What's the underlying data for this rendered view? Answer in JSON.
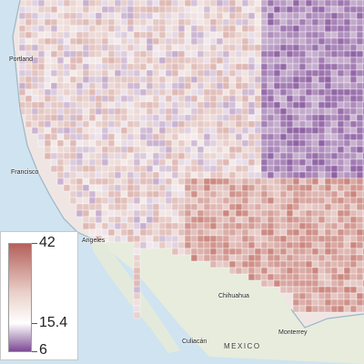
{
  "legend": {
    "max_label": "42",
    "mid_label": "15.4",
    "min_label": "6",
    "color_max": "#b5605a",
    "color_mid": "#ffffff",
    "color_min": "#7c4a93"
  },
  "labels": {
    "country": "MEXICO",
    "cities": [
      "Portland",
      "Francisco",
      "Angeles",
      "Chihuahua",
      "Monterrey",
      "Culiacán"
    ]
  },
  "colors": {
    "ocean": "#cfe3f0",
    "land_base": "#efe6e4",
    "mexico_land": "#e7ecdc",
    "purple": "#8a5aa0",
    "red": "#c06c62"
  }
}
